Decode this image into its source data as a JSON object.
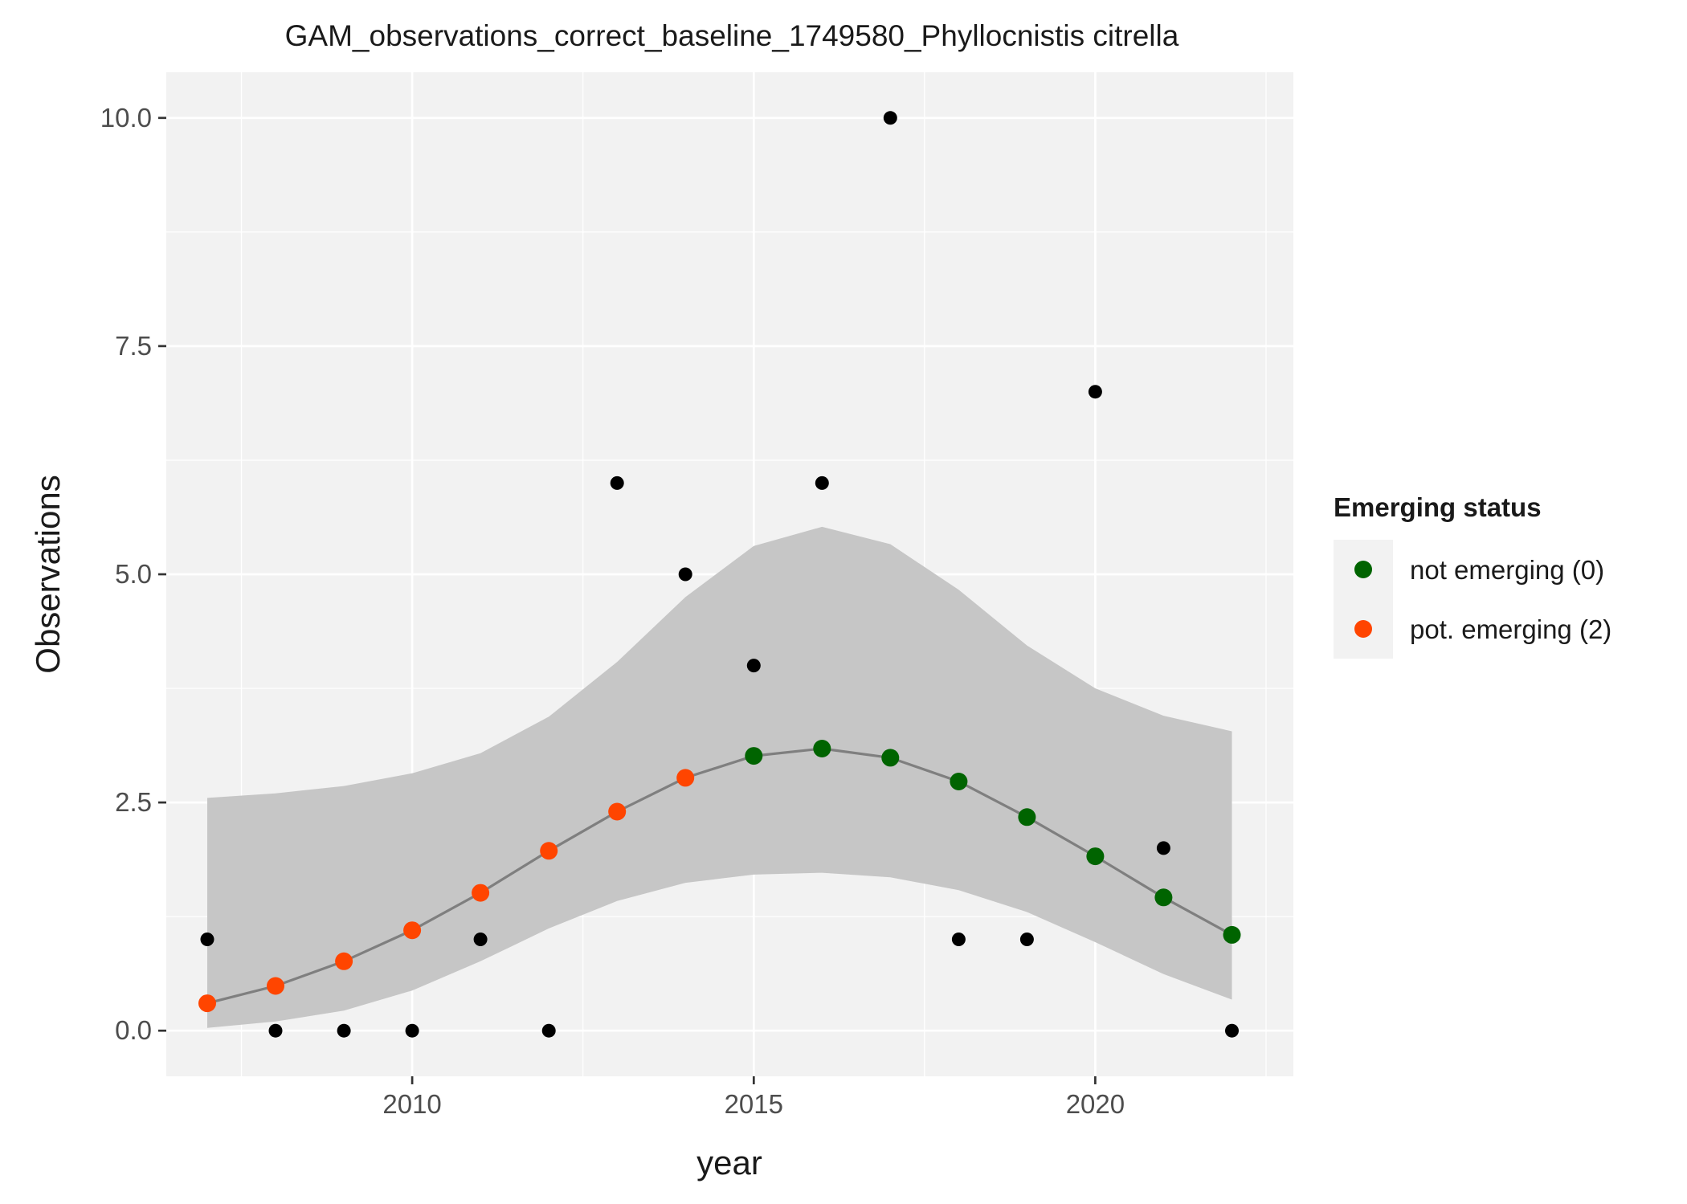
{
  "chart_data": {
    "type": "scatter",
    "title": "GAM_observations_correct_baseline_1749580_Phyllocnistis citrella",
    "xlabel": "year",
    "ylabel": "Observations",
    "xlim": [
      2006.4,
      2022.9
    ],
    "ylim": [
      -0.5,
      10.5
    ],
    "x_ticks": [
      2010,
      2015,
      2020
    ],
    "x_tick_labels": [
      "2010",
      "2015",
      "2020"
    ],
    "y_ticks": [
      0,
      2.5,
      5,
      7.5,
      10
    ],
    "y_tick_labels": [
      "0.0",
      "2.5",
      "5.0",
      "7.5",
      "10.0"
    ],
    "grid": true,
    "legend": {
      "title": "Emerging status",
      "position": "right",
      "entries": [
        {
          "label": "not emerging (0)",
          "color": "#006400"
        },
        {
          "label": "pot. emerging (2)",
          "color": "#ff4500"
        }
      ]
    },
    "observed": {
      "color": "#000000",
      "points": [
        {
          "x": 2007,
          "y": 1
        },
        {
          "x": 2008,
          "y": 0
        },
        {
          "x": 2009,
          "y": 0
        },
        {
          "x": 2010,
          "y": 0
        },
        {
          "x": 2011,
          "y": 1
        },
        {
          "x": 2012,
          "y": 0
        },
        {
          "x": 2013,
          "y": 6
        },
        {
          "x": 2014,
          "y": 5
        },
        {
          "x": 2015,
          "y": 4
        },
        {
          "x": 2016,
          "y": 6
        },
        {
          "x": 2017,
          "y": 10
        },
        {
          "x": 2018,
          "y": 1
        },
        {
          "x": 2019,
          "y": 1
        },
        {
          "x": 2020,
          "y": 7
        },
        {
          "x": 2021,
          "y": 2
        },
        {
          "x": 2022,
          "y": 0
        }
      ]
    },
    "fitted": {
      "line_color": "#7f7f7f",
      "band_color": "#c6c6c6",
      "points": [
        {
          "x": 2007,
          "y": 0.3,
          "lower": 0.03,
          "upper": 2.55,
          "status": "pot. emerging (2)"
        },
        {
          "x": 2008,
          "y": 0.49,
          "lower": 0.1,
          "upper": 2.6,
          "status": "pot. emerging (2)"
        },
        {
          "x": 2009,
          "y": 0.76,
          "lower": 0.22,
          "upper": 2.68,
          "status": "pot. emerging (2)"
        },
        {
          "x": 2010,
          "y": 1.1,
          "lower": 0.44,
          "upper": 2.82,
          "status": "pot. emerging (2)"
        },
        {
          "x": 2011,
          "y": 1.51,
          "lower": 0.76,
          "upper": 3.04,
          "status": "pot. emerging (2)"
        },
        {
          "x": 2012,
          "y": 1.97,
          "lower": 1.12,
          "upper": 3.44,
          "status": "pot. emerging (2)"
        },
        {
          "x": 2013,
          "y": 2.4,
          "lower": 1.42,
          "upper": 4.04,
          "status": "pot. emerging (2)"
        },
        {
          "x": 2014,
          "y": 2.77,
          "lower": 1.62,
          "upper": 4.75,
          "status": "pot. emerging (2)"
        },
        {
          "x": 2015,
          "y": 3.01,
          "lower": 1.71,
          "upper": 5.31,
          "status": "not emerging (0)"
        },
        {
          "x": 2016,
          "y": 3.09,
          "lower": 1.73,
          "upper": 5.52,
          "status": "not emerging (0)"
        },
        {
          "x": 2017,
          "y": 2.99,
          "lower": 1.68,
          "upper": 5.33,
          "status": "not emerging (0)"
        },
        {
          "x": 2018,
          "y": 2.73,
          "lower": 1.54,
          "upper": 4.83,
          "status": "not emerging (0)"
        },
        {
          "x": 2019,
          "y": 2.34,
          "lower": 1.3,
          "upper": 4.22,
          "status": "not emerging (0)"
        },
        {
          "x": 2020,
          "y": 1.91,
          "lower": 0.97,
          "upper": 3.75,
          "status": "not emerging (0)"
        },
        {
          "x": 2021,
          "y": 1.46,
          "lower": 0.62,
          "upper": 3.45,
          "status": "not emerging (0)"
        },
        {
          "x": 2022,
          "y": 1.05,
          "lower": 0.34,
          "upper": 3.28,
          "status": "not emerging (0)"
        }
      ]
    }
  }
}
